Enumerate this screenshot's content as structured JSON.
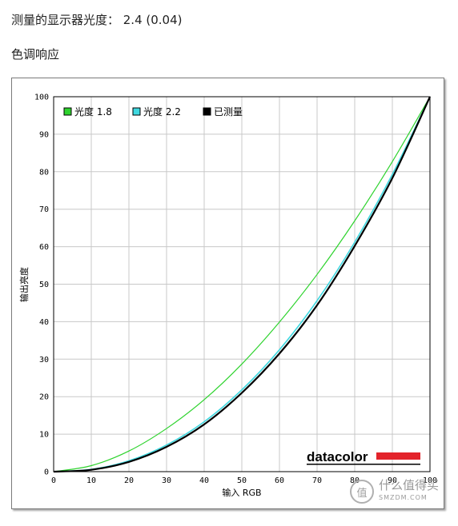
{
  "header": {
    "measured_gamma": "测量的显示器光度： 2.4 (0.04)",
    "section_title": "色调响应"
  },
  "chart_data": {
    "type": "line",
    "xlabel": "输入 RGB",
    "ylabel": "输出亮度",
    "xlim": [
      0,
      100
    ],
    "ylim": [
      0,
      100
    ],
    "xticks": [
      0,
      10,
      20,
      30,
      40,
      50,
      60,
      70,
      80,
      90,
      100
    ],
    "yticks": [
      0,
      10,
      20,
      30,
      40,
      50,
      60,
      70,
      80,
      90,
      100
    ],
    "grid": true,
    "legend_position": "top-left",
    "series": [
      {
        "name": "光度 1.8",
        "color": "#2ed32e",
        "x": [
          0,
          10,
          20,
          30,
          40,
          50,
          60,
          70,
          80,
          90,
          100
        ],
        "y": [
          0,
          1.6,
          5.5,
          11.5,
          19.2,
          28.7,
          39.9,
          52.6,
          66.9,
          82.7,
          100
        ]
      },
      {
        "name": "光度 2.2",
        "color": "#3fd8e0",
        "x": [
          0,
          10,
          20,
          30,
          40,
          50,
          60,
          70,
          80,
          90,
          100
        ],
        "y": [
          0,
          0.6,
          2.9,
          7.1,
          13.3,
          21.8,
          32.5,
          45.6,
          61.2,
          79.3,
          100
        ]
      },
      {
        "name": "已测量",
        "color": "#000000",
        "x": [
          0,
          10,
          20,
          30,
          40,
          50,
          60,
          70,
          80,
          90,
          100
        ],
        "y": [
          0,
          0.5,
          2.6,
          6.6,
          12.6,
          21.0,
          31.5,
          44.4,
          60.2,
          78.3,
          100
        ]
      }
    ]
  },
  "logo": {
    "brand": "datacolor",
    "bar_color": "#e3232b"
  },
  "watermark": {
    "symbol": "值",
    "text": "什么值得买",
    "sub": "SMZDM.COM"
  }
}
